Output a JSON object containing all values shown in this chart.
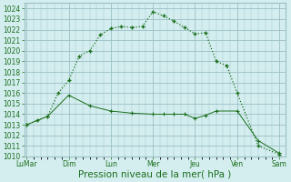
{
  "xlabel": "Pression niveau de la mer( hPa )",
  "bg_color": "#d4eef0",
  "grid_color": "#9bbfc4",
  "line_color": "#1a6e1a",
  "xlabels": [
    "LuMar",
    "Dim",
    "Lun",
    "Mer",
    "Jeu",
    "Ven",
    "Sam"
  ],
  "xtick_pos": [
    0,
    1,
    2,
    3,
    4,
    5,
    6
  ],
  "ylim": [
    1010,
    1024.5
  ],
  "yticks": [
    1010,
    1011,
    1012,
    1013,
    1014,
    1015,
    1016,
    1017,
    1018,
    1019,
    1020,
    1021,
    1022,
    1023,
    1024
  ],
  "line1_x": [
    0.0,
    0.25,
    0.5,
    0.75,
    1.0,
    1.25,
    1.5,
    1.75,
    2.0,
    2.25,
    2.5,
    2.75,
    3.0,
    3.25,
    3.5,
    3.75,
    4.0,
    4.25,
    4.5,
    4.75,
    5.0,
    5.5,
    6.0
  ],
  "line1_y": [
    1013.0,
    1013.4,
    1013.8,
    1016.0,
    1017.2,
    1019.5,
    1020.0,
    1021.5,
    1022.1,
    1022.3,
    1022.2,
    1022.3,
    1023.7,
    1023.3,
    1022.8,
    1022.2,
    1021.6,
    1021.7,
    1019.0,
    1018.6,
    1016.0,
    1011.0,
    1010.2
  ],
  "line2_x": [
    0.0,
    0.5,
    1.0,
    1.5,
    2.0,
    2.5,
    3.0,
    3.25,
    3.5,
    3.75,
    4.0,
    4.25,
    4.5,
    5.0,
    5.5,
    6.0
  ],
  "line2_y": [
    1013.0,
    1013.8,
    1015.8,
    1014.8,
    1014.3,
    1014.1,
    1014.0,
    1014.0,
    1014.0,
    1014.0,
    1013.6,
    1013.9,
    1014.3,
    1014.3,
    1011.5,
    1010.3
  ],
  "tick_fontsize": 5.5,
  "xlabel_fontsize": 7.5
}
